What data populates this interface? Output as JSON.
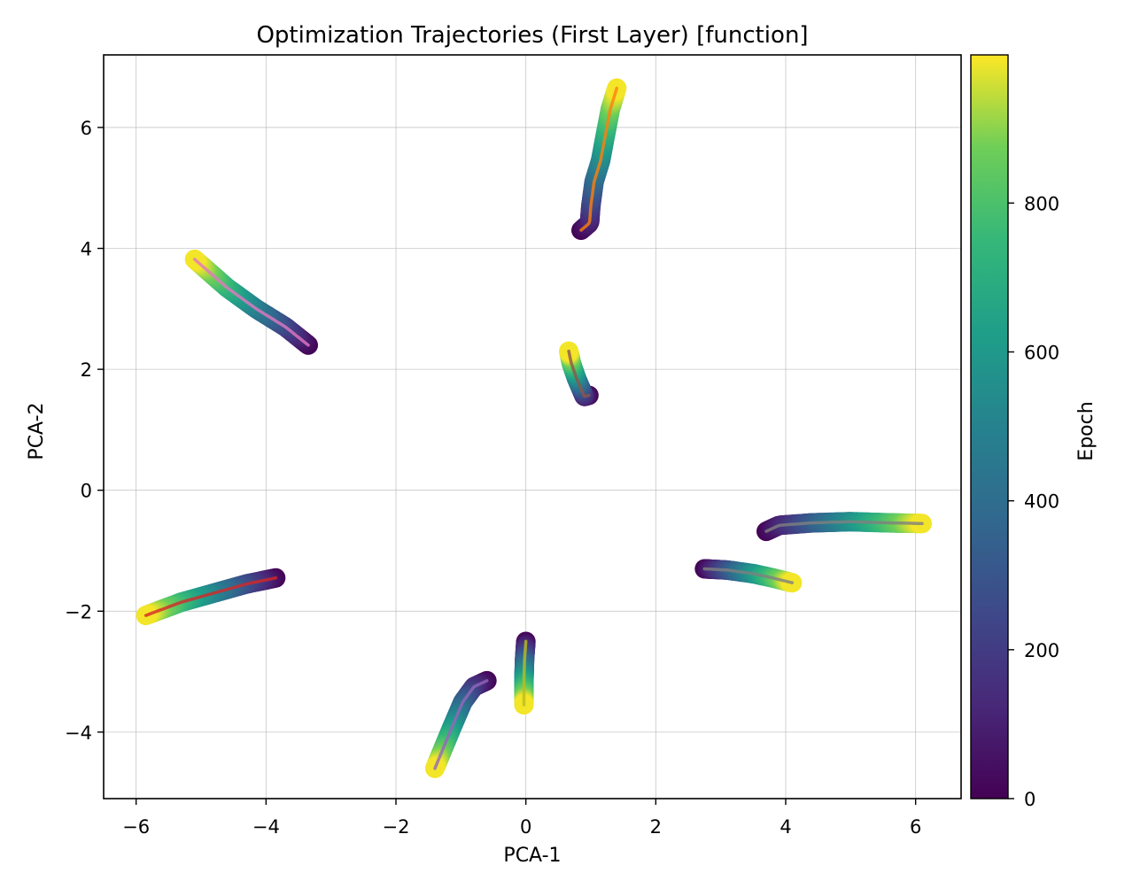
{
  "chart_data": {
    "type": "line",
    "title": "Optimization Trajectories (First Layer) [function]",
    "xlabel": "PCA-1",
    "ylabel": "PCA-2",
    "xlim": [
      -6.5,
      6.7
    ],
    "ylim": [
      -5.1,
      7.2
    ],
    "xticks": [
      -6,
      -4,
      -2,
      0,
      2,
      4,
      6
    ],
    "xtick_labels": [
      "−6",
      "−4",
      "−2",
      "0",
      "2",
      "4",
      "6"
    ],
    "yticks": [
      -4,
      -2,
      0,
      2,
      4,
      6
    ],
    "ytick_labels": [
      "−4",
      "−2",
      "0",
      "2",
      "4",
      "6"
    ],
    "grid": true,
    "colormap": "viridis",
    "colorbar": {
      "label": "Epoch",
      "range": [
        0,
        999
      ],
      "ticks": [
        0,
        200,
        400,
        600,
        800
      ],
      "tick_labels": [
        "0",
        "200",
        "400",
        "600",
        "800"
      ]
    },
    "series": [
      {
        "color": "#ff7f0e",
        "points": [
          [
            0.85,
            4.3
          ],
          [
            0.98,
            4.42
          ],
          [
            1.0,
            4.7
          ],
          [
            1.05,
            5.1
          ],
          [
            1.15,
            5.45
          ],
          [
            1.22,
            5.85
          ],
          [
            1.3,
            6.3
          ],
          [
            1.4,
            6.65
          ]
        ]
      },
      {
        "color": "#e377c2",
        "points": [
          [
            -3.35,
            2.4
          ],
          [
            -3.7,
            2.7
          ],
          [
            -4.15,
            3.0
          ],
          [
            -4.6,
            3.35
          ],
          [
            -5.1,
            3.82
          ]
        ]
      },
      {
        "color": "#8c564b",
        "points": [
          [
            0.97,
            1.57
          ],
          [
            0.9,
            1.55
          ],
          [
            0.78,
            1.85
          ],
          [
            0.7,
            2.1
          ],
          [
            0.66,
            2.3
          ]
        ]
      },
      {
        "color": "#7f7f7f",
        "points": [
          [
            3.7,
            -0.68
          ],
          [
            3.9,
            -0.58
          ],
          [
            4.4,
            -0.54
          ],
          [
            5.0,
            -0.52
          ],
          [
            5.6,
            -0.54
          ],
          [
            6.1,
            -0.55
          ]
        ]
      },
      {
        "color": "#7f7f7f",
        "points": [
          [
            2.75,
            -1.3
          ],
          [
            3.1,
            -1.32
          ],
          [
            3.5,
            -1.38
          ],
          [
            3.8,
            -1.45
          ],
          [
            4.1,
            -1.53
          ]
        ]
      },
      {
        "color": "#d62728",
        "points": [
          [
            -3.85,
            -1.45
          ],
          [
            -4.3,
            -1.55
          ],
          [
            -4.8,
            -1.7
          ],
          [
            -5.3,
            -1.85
          ],
          [
            -5.85,
            -2.07
          ]
        ]
      },
      {
        "color": "#bcbd22",
        "points": [
          [
            0.0,
            -2.5
          ],
          [
            -0.02,
            -2.8
          ],
          [
            -0.03,
            -3.15
          ],
          [
            -0.03,
            -3.55
          ]
        ]
      },
      {
        "color": "#9467bd",
        "points": [
          [
            -0.6,
            -3.15
          ],
          [
            -0.8,
            -3.25
          ],
          [
            -0.97,
            -3.5
          ],
          [
            -1.15,
            -3.95
          ],
          [
            -1.4,
            -4.6
          ]
        ]
      }
    ]
  }
}
